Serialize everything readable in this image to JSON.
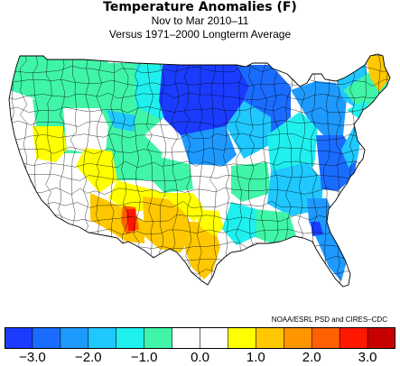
{
  "header": {
    "title": "Temperature Anomalies (F)",
    "period": "Nov to Mar 2010–11",
    "baseline": "Versus 1971–2000 Longterm Average"
  },
  "credit": "NOAA/ESRL PSD and CIRES–CDC",
  "legend": {
    "colors": [
      "#1b3cff",
      "#1a6cff",
      "#1e9aff",
      "#1fc8ff",
      "#1ff0ee",
      "#40f5a8",
      "#ffffff",
      "#ffffff",
      "#ffff00",
      "#ffc800",
      "#ff9600",
      "#ff6000",
      "#ff1800",
      "#c80000"
    ],
    "tick_labels": [
      "−3.0",
      "−2.0",
      "−1.0",
      "0.0",
      "1.0",
      "2.0",
      "3.0"
    ]
  }
}
